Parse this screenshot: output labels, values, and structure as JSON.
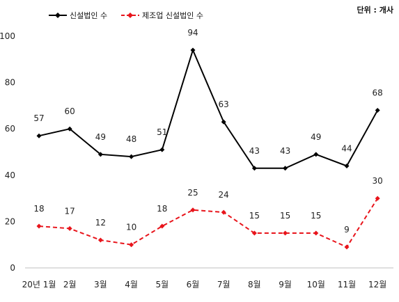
{
  "chart_data": {
    "type": "line",
    "unit_note": "단위 : 개사",
    "categories": [
      "20년 1월",
      "2월",
      "3월",
      "4월",
      "5월",
      "6월",
      "7월",
      "8월",
      "9월",
      "10월",
      "11월",
      "12월"
    ],
    "ylim": [
      0,
      100
    ],
    "yticks": [
      0,
      20,
      40,
      60,
      80,
      100
    ],
    "grid": false,
    "legend_position": "top-left",
    "series": [
      {
        "name": "신설법인 수",
        "color": "#000000",
        "line_style": "solid",
        "values": [
          57,
          60,
          49,
          48,
          51,
          94,
          63,
          43,
          43,
          49,
          44,
          68
        ]
      },
      {
        "name": "제조업 신설법인 수",
        "color": "#e8141b",
        "line_style": "dashed",
        "values": [
          18,
          17,
          12,
          10,
          18,
          25,
          24,
          15,
          15,
          15,
          9,
          30
        ]
      }
    ]
  }
}
